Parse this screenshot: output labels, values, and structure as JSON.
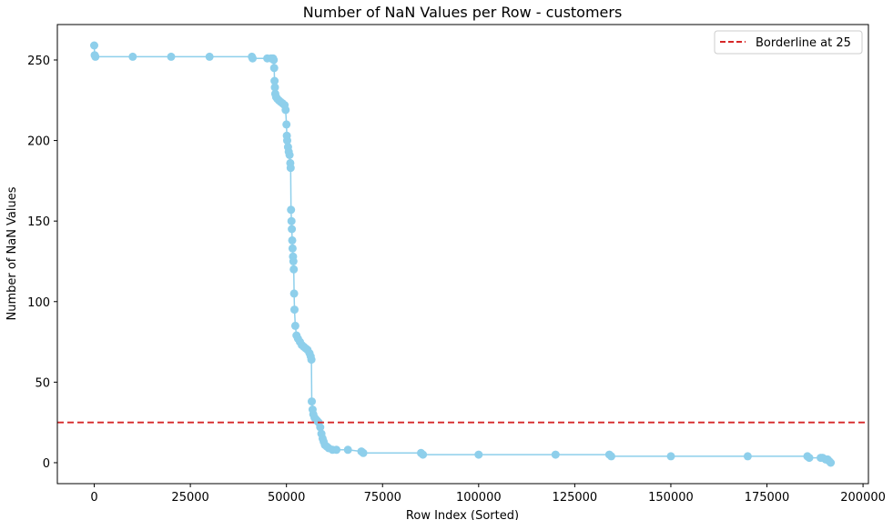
{
  "chart_data": {
    "type": "line",
    "title": "Number of NaN Values per Row - customers",
    "xlabel": "Row Index (Sorted)",
    "ylabel": "Number of NaN Values",
    "xlim": [
      -9600,
      201400
    ],
    "ylim": [
      -13,
      272
    ],
    "x_ticks": [
      0,
      25000,
      50000,
      75000,
      100000,
      125000,
      150000,
      175000,
      200000
    ],
    "x_tick_labels": [
      "0",
      "25000",
      "50000",
      "75000",
      "100000",
      "125000",
      "150000",
      "175000",
      "200000"
    ],
    "y_ticks": [
      0,
      50,
      100,
      150,
      200,
      250
    ],
    "y_tick_labels": [
      "0",
      "50",
      "100",
      "150",
      "200",
      "250"
    ],
    "grid": false,
    "legend_position": "top-right",
    "series": [
      {
        "color": "#8ecfeb",
        "marker": "circle",
        "x": [
          0,
          100,
          300,
          10000,
          20000,
          30000,
          41000,
          41200,
          45000,
          46000,
          46500,
          46700,
          46800,
          46900,
          47000,
          47100,
          47300,
          47600,
          48000,
          48500,
          49000,
          49500,
          49800,
          50000,
          50100,
          50200,
          50400,
          50600,
          50800,
          51000,
          51100,
          51200,
          51300,
          51400,
          51500,
          51600,
          51700,
          51800,
          51900,
          52000,
          52100,
          52300,
          52600,
          53000,
          53500,
          54000,
          54500,
          55000,
          55500,
          56000,
          56300,
          56500,
          56600,
          56800,
          57000,
          57300,
          57600,
          58000,
          58400,
          58800,
          59100,
          59400,
          59700,
          60000,
          60500,
          61000,
          62000,
          63000,
          66000,
          69500,
          70000,
          85000,
          85500,
          100000,
          120000,
          134000,
          134500,
          150000,
          170000,
          185500,
          186000,
          189000,
          189500,
          190300,
          190800,
          191200,
          191600
        ],
        "y": [
          259,
          253,
          252,
          252,
          252,
          252,
          252,
          251,
          251,
          251,
          251,
          250,
          245,
          237,
          233,
          229,
          227,
          226,
          225,
          224,
          223,
          222,
          219,
          210,
          203,
          200,
          196,
          193,
          191,
          186,
          183,
          157,
          150,
          145,
          138,
          133,
          128,
          125,
          120,
          105,
          95,
          85,
          79,
          77,
          75,
          73,
          72,
          71,
          70,
          68,
          66,
          64,
          38,
          33,
          30,
          28,
          27,
          26,
          25,
          22,
          18,
          15,
          13,
          11,
          10,
          9,
          8,
          8,
          8,
          7,
          6,
          6,
          5,
          5,
          5,
          5,
          4,
          4,
          4,
          4,
          3,
          3,
          3,
          2,
          2,
          1,
          0
        ]
      }
    ],
    "reference_lines": [
      {
        "label": "Borderline at 25",
        "y": 25,
        "color": "#d62728",
        "style": "dashed"
      }
    ]
  }
}
